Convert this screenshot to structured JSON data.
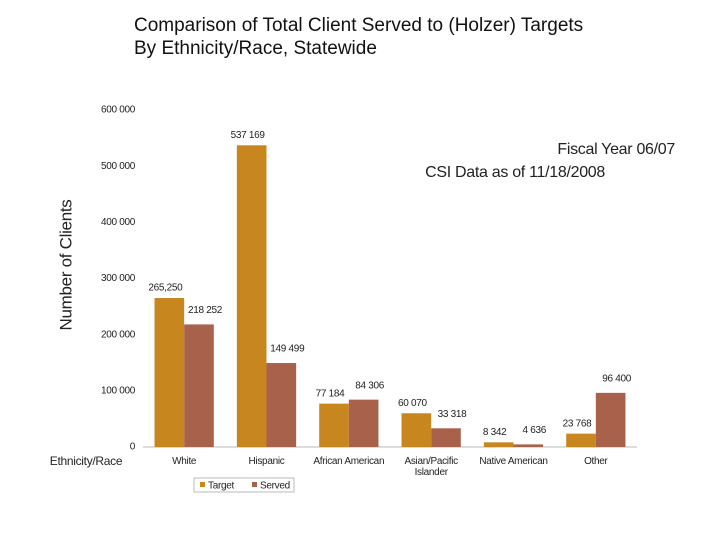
{
  "chart_data": {
    "type": "bar",
    "title": "Comparison of Total Client Served to (Holzer) Targets",
    "subtitle": "By Ethnicity/Race, Statewide",
    "annotations": [
      "Fiscal Year 06/07",
      "CSI Data as of 11/18/2008"
    ],
    "y_label": "Number of Clients",
    "x_label": "Ethnicity/Race",
    "categories": [
      "White",
      "Hispanic",
      "African American",
      "Asian/Pacific Islander",
      "Native American",
      "Other"
    ],
    "series": [
      {
        "name": "Target",
        "color": "#c8861f",
        "values": [
          265250,
          537169,
          77184,
          60070,
          8342,
          23768
        ],
        "value_labels": [
          "265,250",
          "537 169",
          "77 184",
          "60 070",
          "8 342",
          "23 768"
        ]
      },
      {
        "name": "Served",
        "color": "#a8624c",
        "values": [
          218252,
          149499,
          84306,
          33318,
          4636,
          96400
        ],
        "value_labels": [
          "218 252",
          "149 499",
          "84 306",
          "33 318",
          "4 636",
          "96 400"
        ]
      }
    ],
    "ylim": [
      0,
      600000
    ],
    "yticks": [
      0,
      {
        "value": 100000,
        "label": "100 000"
      },
      {
        "value": 200000,
        "label": "200 000"
      },
      {
        "value": 300000,
        "label": "300 000"
      },
      {
        "value": 400000,
        "label": "400 000"
      },
      {
        "value": 500000,
        "label": "500 000"
      },
      {
        "value": 600000,
        "label": "600 000"
      }
    ],
    "grid": false,
    "legend": "bottom"
  }
}
